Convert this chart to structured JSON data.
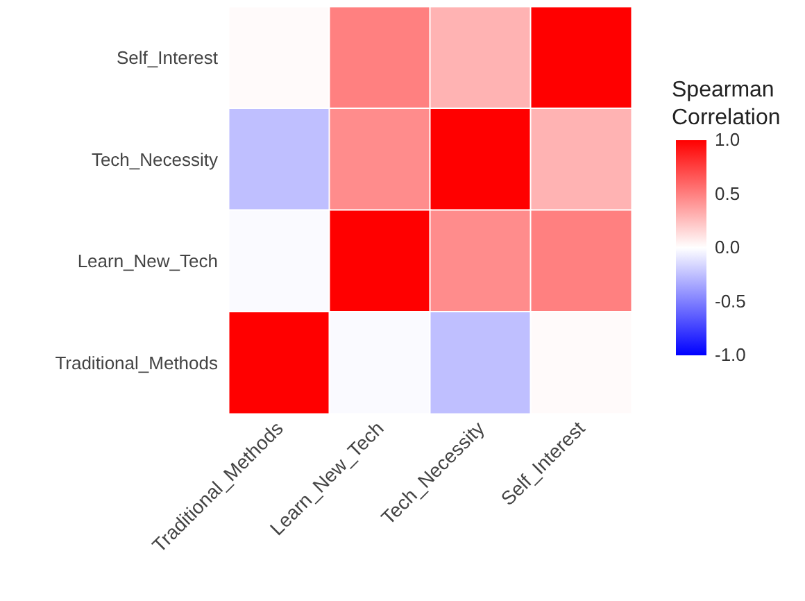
{
  "chart_data": {
    "type": "heatmap",
    "clabel": "Spearman Correlation",
    "categories": [
      "Traditional_Methods",
      "Learn_New_Tech",
      "Tech_Necessity",
      "Self_Interest"
    ],
    "y_categories": [
      "Self_Interest",
      "Tech_Necessity",
      "Learn_New_Tech",
      "Traditional_Methods"
    ],
    "cells": [
      [
        0.02,
        0.5,
        0.3,
        1
      ],
      [
        -0.25,
        0.45,
        1,
        0.3
      ],
      [
        -0.02,
        1,
        0.45,
        0.5
      ],
      [
        1,
        -0.02,
        -0.25,
        0.02
      ]
    ],
    "clim": [
      -1,
      1
    ],
    "cticks": [
      {
        "value": 1,
        "label": "1.0"
      },
      {
        "value": 0.5,
        "label": "0.5"
      },
      {
        "value": 0,
        "label": "0.0"
      },
      {
        "value": -0.5,
        "label": "-0.5"
      },
      {
        "value": -1,
        "label": "-1.0"
      }
    ]
  }
}
